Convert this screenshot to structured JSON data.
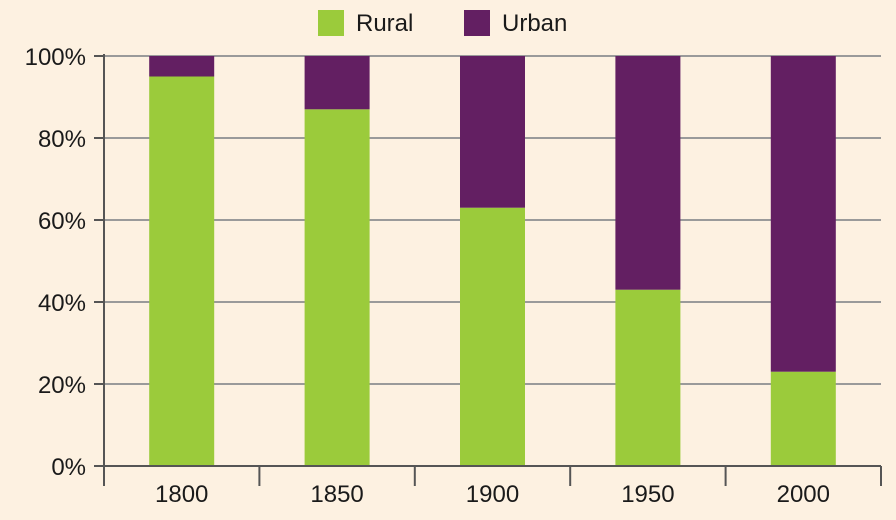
{
  "chart_data": {
    "type": "bar",
    "stacked": true,
    "categories": [
      "1800",
      "1850",
      "1900",
      "1950",
      "2000"
    ],
    "series": [
      {
        "name": "Rural",
        "values": [
          95,
          87,
          63,
          43,
          23
        ]
      },
      {
        "name": "Urban",
        "values": [
          5,
          13,
          37,
          57,
          77
        ]
      }
    ],
    "ylim": [
      0,
      100
    ],
    "yticks": [
      "0%",
      "20%",
      "40%",
      "60%",
      "80%",
      "100%"
    ],
    "title": "",
    "xlabel": "",
    "ylabel": "",
    "grid": true,
    "legend": "top-center",
    "colors": {
      "Rural": "#9bcb3b",
      "Urban": "#631f62",
      "gridline": "#9a9a9a",
      "axis": "#555555",
      "background": "#fdf1e1"
    }
  }
}
